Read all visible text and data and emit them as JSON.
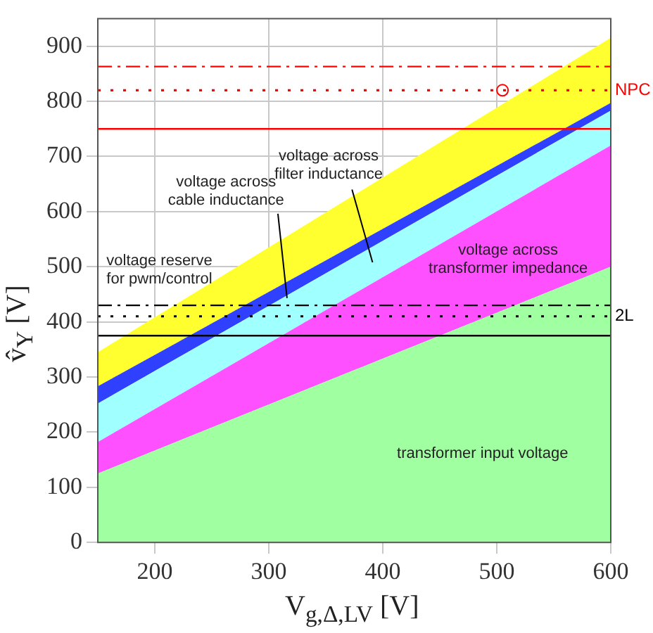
{
  "chart_data": {
    "type": "area",
    "stacked": true,
    "x": [
      150,
      600
    ],
    "xlabel": "V$_{g,Δ,LV}$ [V]",
    "ylabel": "v̂$_{Y}$ [V]",
    "xlim": [
      150,
      600
    ],
    "xticks": [
      200,
      300,
      400,
      500,
      600
    ],
    "ylim": [
      0,
      950
    ],
    "yticks": [
      0,
      100,
      200,
      300,
      400,
      500,
      600,
      700,
      800,
      900
    ],
    "grid": true,
    "legend": false,
    "series": [
      {
        "color": "#a0ffa0",
        "values": [
          125,
          500
        ]
      },
      {
        "color": "#ff50ff",
        "values": [
          57,
          220
        ]
      },
      {
        "color": "#a0ffff",
        "values": [
          70,
          63
        ]
      },
      {
        "color": "#3040ff",
        "values": [
          31,
          14
        ]
      },
      {
        "color": "#ffff30",
        "values": [
          62,
          118
        ]
      },
      {
        "type": "line",
        "color": "#000000",
        "x": [
          308,
          316
        ],
        "values": [
          596,
          443
        ]
      },
      {
        "type": "line",
        "color": "#000000",
        "x": [
          373,
          391
        ],
        "values": [
          640,
          508
        ]
      },
      {
        "type": "scatter",
        "color": "#ff0000",
        "marker": "circle",
        "x": [
          505
        ],
        "values": [
          820
        ]
      }
    ],
    "ref_lines": [
      {
        "axis": "y",
        "value": 863,
        "color": "#ff0000",
        "line_style": "dashdot"
      },
      {
        "axis": "y",
        "value": 820,
        "color": "#ff0000",
        "line_style": "dotted",
        "label": "NPC"
      },
      {
        "axis": "y",
        "value": 750,
        "color": "#ff0000",
        "line_style": "solid"
      },
      {
        "axis": "y",
        "value": 430,
        "color": "#000000",
        "line_style": "dashdot"
      },
      {
        "axis": "y",
        "value": 410,
        "color": "#000000",
        "line_style": "dotted",
        "label": "2L"
      },
      {
        "axis": "y",
        "value": 375,
        "color": "#000000",
        "line_style": "solid"
      }
    ],
    "annotations": [
      "voltage across\ncable inductance",
      "voltage across\nfilter inductance",
      "voltage reserve\nfor pwm/control",
      "voltage across\ntransformer impedance",
      "transformer input voltage"
    ]
  }
}
